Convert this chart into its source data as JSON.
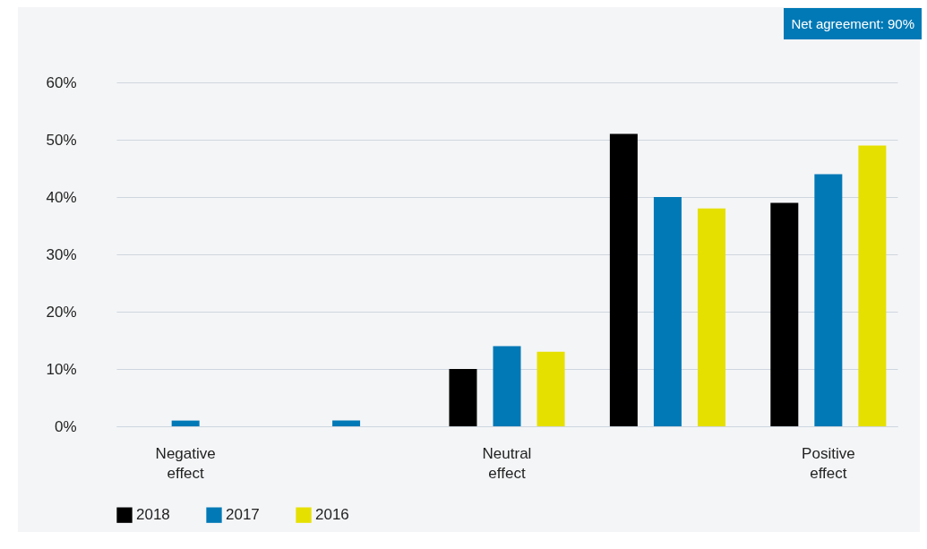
{
  "chart_data": {
    "type": "bar",
    "categories": [
      "Negative effect",
      null,
      "Neutral effect",
      null,
      "Positive effect"
    ],
    "series": [
      {
        "name": "2018",
        "color": "#000000",
        "values": [
          0,
          0,
          10,
          51,
          39
        ]
      },
      {
        "name": "2017",
        "color": "#0079b6",
        "values": [
          1,
          1,
          14,
          40,
          44
        ]
      },
      {
        "name": "2016",
        "color": "#e6e000",
        "values": [
          0,
          0,
          13,
          38,
          49
        ]
      }
    ],
    "ylim": [
      0,
      60
    ],
    "yticks": [
      {
        "value": 0,
        "label": "0%"
      },
      {
        "value": 10,
        "label": "10%"
      },
      {
        "value": 20,
        "label": "20%"
      },
      {
        "value": 30,
        "label": "30%"
      },
      {
        "value": 40,
        "label": "40%"
      },
      {
        "value": 50,
        "label": "50%"
      },
      {
        "value": 60,
        "label": "60%"
      }
    ],
    "grid": "y",
    "legend": "bottom left",
    "annotations": [
      "Net agreement: 90%"
    ]
  }
}
